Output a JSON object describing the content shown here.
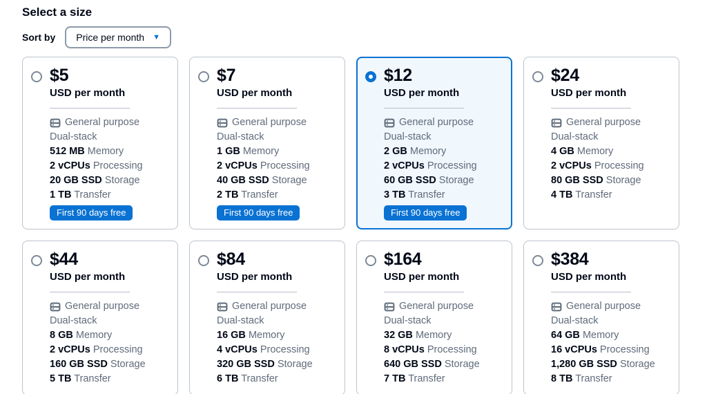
{
  "page": {
    "title": "Select a size"
  },
  "sort": {
    "label": "Sort by",
    "selected_option": "Price per month",
    "chevron_icon": "▼"
  },
  "colors": {
    "accent_blue": "#0972d3",
    "selected_card_bg": "#f0f7fd",
    "selected_card_border": "#0972d3",
    "card_border": "#bcc4cd",
    "badge_bg": "#0972d3",
    "badge_text": "#ffffff",
    "primary_text": "#000716",
    "secondary_text": "#5f6b7a"
  },
  "icons": {
    "purpose_icon": "instance-icon"
  },
  "cards": [
    {
      "price": "$5",
      "period": "USD per month",
      "purpose": "General purpose",
      "network": "Dual-stack",
      "specs": [
        {
          "value": "512 MB",
          "label": "Memory"
        },
        {
          "value": "2 vCPUs",
          "label": "Processing"
        },
        {
          "value": "20 GB SSD",
          "label": "Storage"
        },
        {
          "value": "1 TB",
          "label": "Transfer"
        }
      ],
      "badge": "First 90 days free",
      "selected": false
    },
    {
      "price": "$7",
      "period": "USD per month",
      "purpose": "General purpose",
      "network": "Dual-stack",
      "specs": [
        {
          "value": "1 GB",
          "label": "Memory"
        },
        {
          "value": "2 vCPUs",
          "label": "Processing"
        },
        {
          "value": "40 GB SSD",
          "label": "Storage"
        },
        {
          "value": "2 TB",
          "label": "Transfer"
        }
      ],
      "badge": "First 90 days free",
      "selected": false
    },
    {
      "price": "$12",
      "period": "USD per month",
      "purpose": "General purpose",
      "network": "Dual-stack",
      "specs": [
        {
          "value": "2 GB",
          "label": "Memory"
        },
        {
          "value": "2 vCPUs",
          "label": "Processing"
        },
        {
          "value": "60 GB SSD",
          "label": "Storage"
        },
        {
          "value": "3 TB",
          "label": "Transfer"
        }
      ],
      "badge": "First 90 days free",
      "selected": true
    },
    {
      "price": "$24",
      "period": "USD per month",
      "purpose": "General purpose",
      "network": "Dual-stack",
      "specs": [
        {
          "value": "4 GB",
          "label": "Memory"
        },
        {
          "value": "2 vCPUs",
          "label": "Processing"
        },
        {
          "value": "80 GB SSD",
          "label": "Storage"
        },
        {
          "value": "4 TB",
          "label": "Transfer"
        }
      ],
      "badge": "",
      "selected": false
    },
    {
      "price": "$44",
      "period": "USD per month",
      "purpose": "General purpose",
      "network": "Dual-stack",
      "specs": [
        {
          "value": "8 GB",
          "label": "Memory"
        },
        {
          "value": "2 vCPUs",
          "label": "Processing"
        },
        {
          "value": "160 GB SSD",
          "label": "Storage"
        },
        {
          "value": "5 TB",
          "label": "Transfer"
        }
      ],
      "badge": "",
      "selected": false
    },
    {
      "price": "$84",
      "period": "USD per month",
      "purpose": "General purpose",
      "network": "Dual-stack",
      "specs": [
        {
          "value": "16 GB",
          "label": "Memory"
        },
        {
          "value": "4 vCPUs",
          "label": "Processing"
        },
        {
          "value": "320 GB SSD",
          "label": "Storage"
        },
        {
          "value": "6 TB",
          "label": "Transfer"
        }
      ],
      "badge": "",
      "selected": false
    },
    {
      "price": "$164",
      "period": "USD per month",
      "purpose": "General purpose",
      "network": "Dual-stack",
      "specs": [
        {
          "value": "32 GB",
          "label": "Memory"
        },
        {
          "value": "8 vCPUs",
          "label": "Processing"
        },
        {
          "value": "640 GB SSD",
          "label": "Storage"
        },
        {
          "value": "7 TB",
          "label": "Transfer"
        }
      ],
      "badge": "",
      "selected": false
    },
    {
      "price": "$384",
      "period": "USD per month",
      "purpose": "General purpose",
      "network": "Dual-stack",
      "specs": [
        {
          "value": "64 GB",
          "label": "Memory"
        },
        {
          "value": "16 vCPUs",
          "label": "Processing"
        },
        {
          "value": "1,280 GB SSD",
          "label": "Storage"
        },
        {
          "value": "8 TB",
          "label": "Transfer"
        }
      ],
      "badge": "",
      "selected": false
    }
  ]
}
